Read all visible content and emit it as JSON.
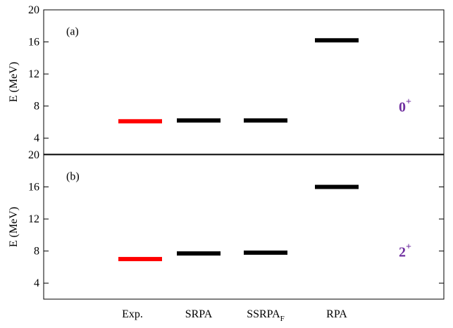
{
  "chart_data": [
    {
      "type": "level",
      "ylabel": "E (MeV)",
      "panel_label": "(a)",
      "state": {
        "text": "0",
        "sup": "+"
      },
      "state_color": "#7030a0",
      "ylim": [
        2,
        20
      ],
      "yticks": [
        4,
        8,
        12,
        16,
        20
      ],
      "values": [
        6.1,
        6.2,
        6.2,
        16.2
      ],
      "colors": [
        "#ff0000",
        "#000000",
        "#000000",
        "#000000"
      ]
    },
    {
      "type": "level",
      "ylabel": "E (MeV)",
      "panel_label": "(b)",
      "state": {
        "text": "2",
        "sup": "+"
      },
      "state_color": "#7030a0",
      "ylim": [
        2,
        20
      ],
      "yticks": [
        4,
        8,
        12,
        16,
        20
      ],
      "categories": [
        "Exp.",
        "SRPA",
        "SSRPA",
        "RPA"
      ],
      "category_subscripts": [
        null,
        null,
        "F",
        null
      ],
      "values": [
        7.0,
        7.7,
        7.8,
        16.0
      ],
      "colors": [
        "#ff0000",
        "#000000",
        "#000000",
        "#000000"
      ]
    }
  ]
}
